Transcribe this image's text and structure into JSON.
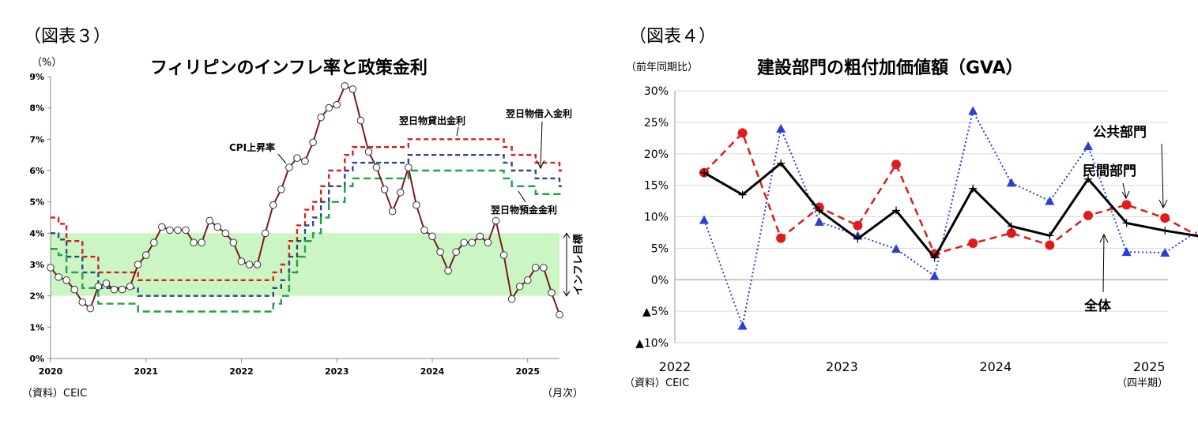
{
  "left": {
    "fig_label": "（図表３）",
    "source": "（資料）CEIC",
    "x_unit": "（月次）",
    "target_band_label": "インフレ目標",
    "chart_data": {
      "type": "line",
      "title": "フィリピンのインフレ率と政策金利",
      "ylabel": "（%）",
      "ylim": [
        0,
        9
      ],
      "yticks": [
        "0%",
        "1%",
        "2%",
        "3%",
        "4%",
        "5%",
        "6%",
        "7%",
        "8%",
        "9%"
      ],
      "x_ticks": [
        "2020",
        "2021",
        "2022",
        "2023",
        "2024",
        "2025"
      ],
      "x_range": [
        0,
        64
      ],
      "grid": false,
      "target_band": [
        2,
        4
      ],
      "series": [
        {
          "name": "CPI上昇率",
          "color": "#7b1a1a",
          "x": [
            0,
            1,
            2,
            3,
            4,
            5,
            6,
            7,
            8,
            9,
            10,
            11,
            12,
            13,
            14,
            15,
            16,
            17,
            18,
            19,
            20,
            21,
            22,
            23,
            24,
            25,
            26,
            27,
            28,
            29,
            30,
            31,
            32,
            33,
            34,
            35,
            36,
            37,
            38,
            39,
            40,
            41,
            42,
            43,
            44,
            45,
            46,
            47,
            48,
            49,
            50,
            51,
            52,
            53,
            54,
            55,
            56,
            57,
            58,
            59,
            60,
            61,
            62,
            63,
            64
          ],
          "values": [
            2.9,
            2.6,
            2.5,
            2.2,
            1.8,
            1.6,
            2.3,
            2.4,
            2.2,
            2.2,
            2.3,
            3.0,
            3.3,
            3.7,
            4.2,
            4.1,
            4.1,
            4.1,
            3.7,
            3.7,
            4.4,
            4.2,
            4.0,
            3.7,
            3.1,
            3.0,
            3.0,
            4.0,
            4.9,
            5.4,
            6.1,
            6.4,
            6.3,
            6.9,
            7.7,
            8.0,
            8.1,
            8.7,
            8.6,
            7.6,
            6.6,
            6.1,
            5.4,
            4.7,
            5.3,
            6.1,
            4.9,
            4.1,
            3.9,
            3.4,
            2.8,
            3.4,
            3.7,
            3.7,
            3.9,
            3.7,
            4.4,
            3.3,
            1.9,
            2.3,
            2.5,
            2.9,
            2.9,
            2.1,
            1.4
          ]
        },
        {
          "name": "翌日物貸出金利",
          "color": "#d62020",
          "dash": "6,4",
          "x": [
            0,
            1,
            2,
            3,
            4,
            5,
            6,
            7,
            8,
            9,
            10,
            11,
            12,
            13,
            14,
            15,
            16,
            17,
            18,
            19,
            20,
            21,
            22,
            23,
            24,
            25,
            26,
            27,
            28,
            29,
            30,
            31,
            32,
            33,
            34,
            35,
            36,
            37,
            38,
            39,
            40,
            41,
            42,
            43,
            44,
            45,
            46,
            47,
            48,
            49,
            50,
            51,
            52,
            53,
            54,
            55,
            56,
            57,
            58,
            59,
            60,
            61,
            62,
            63,
            64
          ],
          "values": [
            4.5,
            4.3,
            3.75,
            3.75,
            3.25,
            3.25,
            2.75,
            2.75,
            2.75,
            2.75,
            2.75,
            2.5,
            2.5,
            2.5,
            2.5,
            2.5,
            2.5,
            2.5,
            2.5,
            2.5,
            2.5,
            2.5,
            2.5,
            2.5,
            2.5,
            2.5,
            2.5,
            2.5,
            2.75,
            3.0,
            3.75,
            4.25,
            4.75,
            5.0,
            5.5,
            6.0,
            6.0,
            6.5,
            6.75,
            6.75,
            6.75,
            6.75,
            6.75,
            6.75,
            6.75,
            7.0,
            7.0,
            7.0,
            7.0,
            7.0,
            7.0,
            7.0,
            7.0,
            7.0,
            7.0,
            7.0,
            7.0,
            6.75,
            6.5,
            6.5,
            6.5,
            6.25,
            6.25,
            6.25,
            6.0
          ]
        },
        {
          "name": "翌日物借入金利",
          "color": "#2b4a7a",
          "dash": "6,4",
          "x": [
            0,
            1,
            2,
            3,
            4,
            5,
            6,
            7,
            8,
            9,
            10,
            11,
            12,
            13,
            14,
            15,
            16,
            17,
            18,
            19,
            20,
            21,
            22,
            23,
            24,
            25,
            26,
            27,
            28,
            29,
            30,
            31,
            32,
            33,
            34,
            35,
            36,
            37,
            38,
            39,
            40,
            41,
            42,
            43,
            44,
            45,
            46,
            47,
            48,
            49,
            50,
            51,
            52,
            53,
            54,
            55,
            56,
            57,
            58,
            59,
            60,
            61,
            62,
            63,
            64
          ],
          "values": [
            4.0,
            3.8,
            3.25,
            3.25,
            2.75,
            2.75,
            2.25,
            2.25,
            2.25,
            2.25,
            2.25,
            2.0,
            2.0,
            2.0,
            2.0,
            2.0,
            2.0,
            2.0,
            2.0,
            2.0,
            2.0,
            2.0,
            2.0,
            2.0,
            2.0,
            2.0,
            2.0,
            2.0,
            2.25,
            2.5,
            3.25,
            3.75,
            4.25,
            4.5,
            5.0,
            5.5,
            5.5,
            6.0,
            6.25,
            6.25,
            6.25,
            6.25,
            6.25,
            6.25,
            6.25,
            6.5,
            6.5,
            6.5,
            6.5,
            6.5,
            6.5,
            6.5,
            6.5,
            6.5,
            6.5,
            6.5,
            6.5,
            6.25,
            6.0,
            6.0,
            6.0,
            5.75,
            5.75,
            5.75,
            5.5
          ]
        },
        {
          "name": "翌日物預金金利",
          "color": "#22a04a",
          "dash": "9,5",
          "x": [
            0,
            1,
            2,
            3,
            4,
            5,
            6,
            7,
            8,
            9,
            10,
            11,
            12,
            13,
            14,
            15,
            16,
            17,
            18,
            19,
            20,
            21,
            22,
            23,
            24,
            25,
            26,
            27,
            28,
            29,
            30,
            31,
            32,
            33,
            34,
            35,
            36,
            37,
            38,
            39,
            40,
            41,
            42,
            43,
            44,
            45,
            46,
            47,
            48,
            49,
            50,
            51,
            52,
            53,
            54,
            55,
            56,
            57,
            58,
            59,
            60,
            61,
            62,
            63,
            64
          ],
          "values": [
            3.5,
            3.3,
            2.75,
            2.75,
            2.25,
            2.25,
            1.75,
            1.75,
            1.75,
            1.75,
            1.75,
            1.5,
            1.5,
            1.5,
            1.5,
            1.5,
            1.5,
            1.5,
            1.5,
            1.5,
            1.5,
            1.5,
            1.5,
            1.5,
            1.5,
            1.5,
            1.5,
            1.5,
            1.75,
            2.0,
            2.75,
            3.25,
            3.75,
            4.0,
            4.5,
            5.0,
            5.0,
            5.5,
            5.75,
            5.75,
            5.75,
            5.75,
            5.75,
            5.75,
            5.75,
            6.0,
            6.0,
            6.0,
            6.0,
            6.0,
            6.0,
            6.0,
            6.0,
            6.0,
            6.0,
            6.0,
            6.0,
            5.75,
            5.5,
            5.5,
            5.5,
            5.25,
            5.25,
            5.25,
            5.25
          ]
        }
      ]
    }
  },
  "right": {
    "fig_label": "（図表４）",
    "source": "（資料）CEIC",
    "x_unit": "（四半期）",
    "chart_data": {
      "type": "line",
      "title": "建設部門の粗付加価値額（GVA）",
      "ylabel": "（前年同期比）",
      "ylim": [
        -10,
        30
      ],
      "yticks": [
        "▲10%",
        "▲5%",
        "0%",
        "5%",
        "10%",
        "15%",
        "20%",
        "25%",
        "30%"
      ],
      "x_ticks": [
        "2022",
        "2023",
        "2024",
        "2025"
      ],
      "x": [
        "2022Q1",
        "2022Q2",
        "2022Q3",
        "2022Q4",
        "2023Q1",
        "2023Q2",
        "2023Q3",
        "2023Q4",
        "2024Q1",
        "2024Q2",
        "2024Q3",
        "2024Q4",
        "2025Q1",
        "2025Q2"
      ],
      "grid": true,
      "series": [
        {
          "name": "全体",
          "color": "#000000",
          "values": [
            17.0,
            13.5,
            18.5,
            11.0,
            6.5,
            11.0,
            3.5,
            14.5,
            8.5,
            7.0,
            16.0,
            9.0,
            7.8,
            6.8
          ]
        },
        {
          "name": "民間部門",
          "color": "#e01b1b",
          "values": [
            17.0,
            23.3,
            6.6,
            11.5,
            8.6,
            18.3,
            4.1,
            5.8,
            7.4,
            5.5,
            10.2,
            11.9,
            9.8,
            6.5
          ]
        },
        {
          "name": "公共部門",
          "color": "#2c3ed6",
          "values": [
            9.5,
            -7.3,
            24.0,
            9.2,
            7.0,
            4.9,
            0.6,
            26.8,
            15.4,
            12.5,
            21.2,
            4.4,
            4.3,
            8.3
          ]
        }
      ]
    }
  }
}
